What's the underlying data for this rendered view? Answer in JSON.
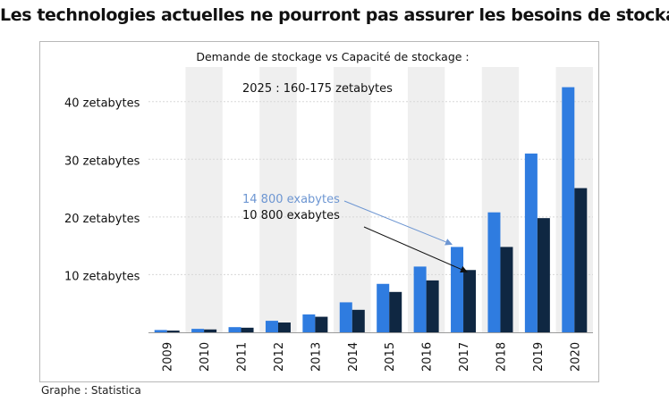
{
  "headline": "Les technologies actuelles ne pourront pas assurer les besoins de stockage",
  "source": "Graphe : Statistica",
  "colors": {
    "demand": "#2f7ce0",
    "capacity": "#0f2742",
    "band": "#efefef",
    "grid": "#d8d8d8",
    "arrow_demand": "#6d96d2",
    "arrow_capacity": "#111111"
  },
  "chart_data": {
    "type": "bar",
    "title": "Demande de stockage vs Capacité de stockage :",
    "subtitle": "2025 : 160-175 zetabytes",
    "xlabel": "",
    "ylabel": "",
    "ylim": [
      0,
      46
    ],
    "y_ticks": [
      {
        "value": 10,
        "label": "10 zetabytes"
      },
      {
        "value": 20,
        "label": "20 zetabytes"
      },
      {
        "value": 30,
        "label": "30 zetabytes"
      },
      {
        "value": 40,
        "label": "40 zetabytes"
      }
    ],
    "categories": [
      "2009",
      "2010",
      "2011",
      "2012",
      "2013",
      "2014",
      "2015",
      "2016",
      "2017",
      "2018",
      "2019",
      "2020"
    ],
    "series": [
      {
        "name": "Demande",
        "values": [
          0.4,
          0.6,
          0.9,
          2.0,
          3.1,
          5.2,
          8.4,
          11.4,
          14.8,
          20.8,
          31.0,
          42.5
        ]
      },
      {
        "name": "Capacité",
        "values": [
          0.3,
          0.5,
          0.8,
          1.7,
          2.7,
          3.9,
          7.0,
          9.0,
          10.8,
          14.8,
          19.8,
          25.0
        ]
      }
    ],
    "annotations": [
      {
        "text": "14 800 exabytes",
        "category": "2017",
        "series": 0
      },
      {
        "text": "10 800 exabytes",
        "category": "2017",
        "series": 1
      }
    ],
    "grid": true
  }
}
